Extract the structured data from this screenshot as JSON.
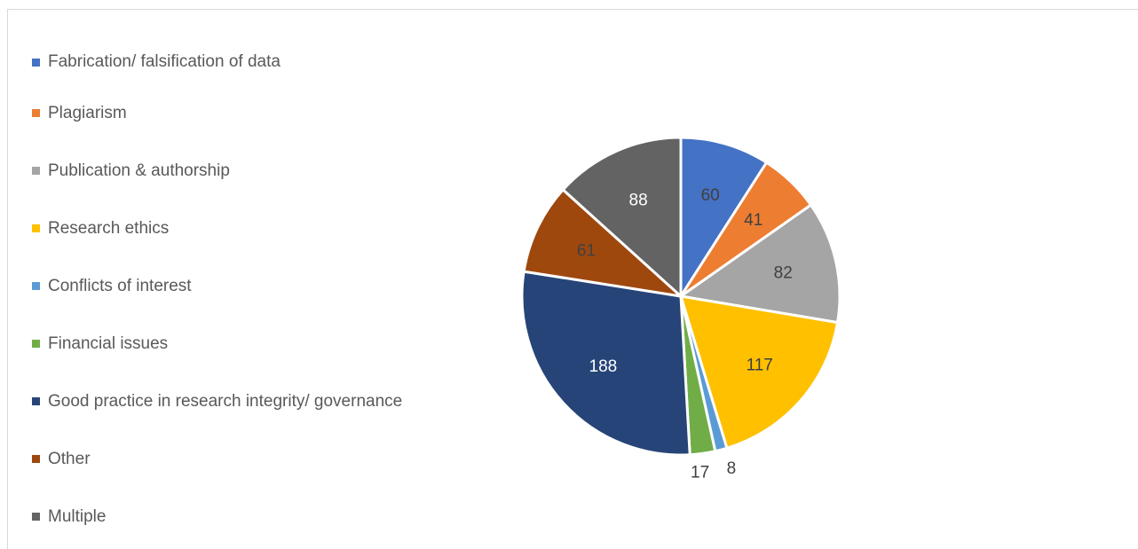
{
  "chart_data": {
    "type": "pie",
    "title": "",
    "categories": [
      "Fabrication/ falsification of data",
      "Plagiarism",
      "Publication & authorship",
      "Research ethics",
      "Conflicts of interest",
      "Financial issues",
      "Good practice in research integrity/ governance",
      "Other",
      "Multiple"
    ],
    "values": [
      60,
      41,
      82,
      117,
      8,
      17,
      188,
      61,
      88
    ],
    "data_labels": [
      "60",
      "41",
      "82",
      "117",
      "8",
      "17",
      "188",
      "61",
      "88"
    ],
    "colors": [
      "#4472C4",
      "#ED7D31",
      "#A5A5A5",
      "#FFC000",
      "#5B9BD5",
      "#70AD47",
      "#264478",
      "#9E480E",
      "#636363"
    ],
    "label_colors": [
      "#404040",
      "#404040",
      "#404040",
      "#404040",
      "#404040",
      "#404040",
      "#ffffff",
      "#404040",
      "#ffffff"
    ],
    "legend_position": "left",
    "start_angle": "12 o'clock",
    "direction": "clockwise"
  }
}
